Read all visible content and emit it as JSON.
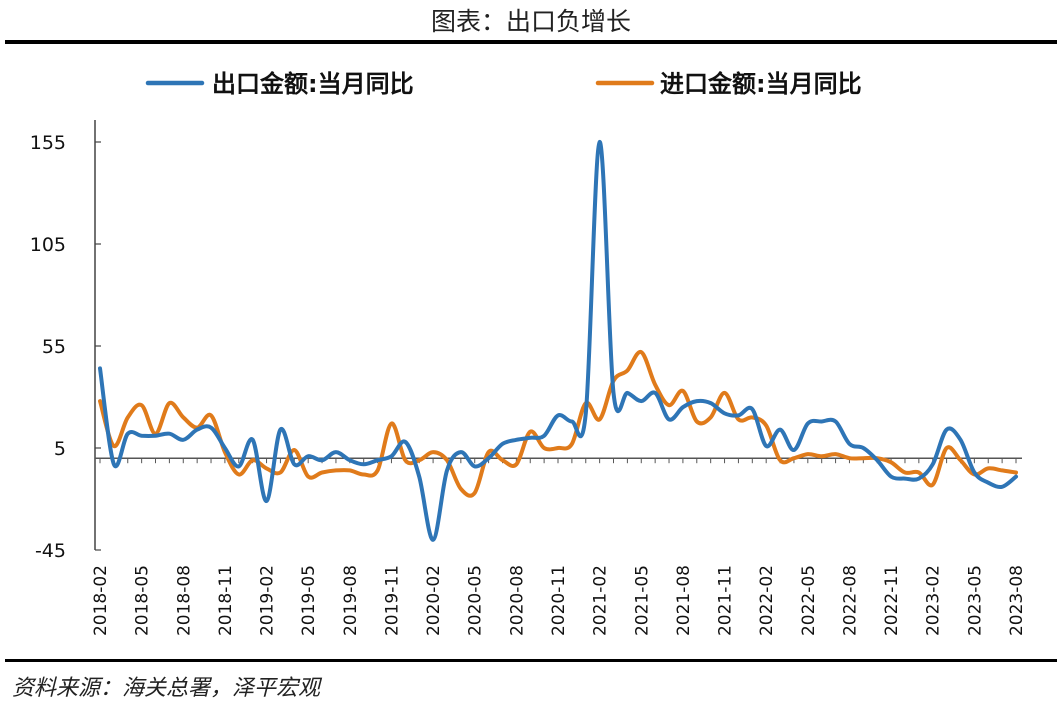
{
  "header": {
    "title": "图表：出口负增长"
  },
  "footer": {
    "source": "资料来源：海关总署，泽平宏观"
  },
  "chart_data": {
    "type": "line",
    "title": "图表：出口负增长",
    "xlabel": "",
    "ylabel": "",
    "ylim": [
      -45,
      155
    ],
    "yticks": [
      -45,
      5,
      55,
      105,
      155
    ],
    "grid": false,
    "legend_position": "top",
    "x_tick_labels": [
      "2018-02",
      "2018-05",
      "2018-08",
      "2018-11",
      "2019-02",
      "2019-05",
      "2019-08",
      "2019-11",
      "2020-02",
      "2020-05",
      "2020-08",
      "2020-11",
      "2021-02",
      "2021-05",
      "2021-08",
      "2021-11",
      "2022-02",
      "2022-05",
      "2022-08",
      "2022-11",
      "2023-02",
      "2023-05",
      "2023-08"
    ],
    "x": [
      "2018-02",
      "2018-03",
      "2018-04",
      "2018-05",
      "2018-06",
      "2018-07",
      "2018-08",
      "2018-09",
      "2018-10",
      "2018-11",
      "2018-12",
      "2019-01",
      "2019-02",
      "2019-03",
      "2019-04",
      "2019-05",
      "2019-06",
      "2019-07",
      "2019-08",
      "2019-09",
      "2019-10",
      "2019-11",
      "2019-12",
      "2020-01",
      "2020-02",
      "2020-03",
      "2020-04",
      "2020-05",
      "2020-06",
      "2020-07",
      "2020-08",
      "2020-09",
      "2020-10",
      "2020-11",
      "2020-12",
      "2021-01",
      "2021-02",
      "2021-03",
      "2021-04",
      "2021-05",
      "2021-06",
      "2021-07",
      "2021-08",
      "2021-09",
      "2021-10",
      "2021-11",
      "2021-12",
      "2022-01",
      "2022-02",
      "2022-03",
      "2022-04",
      "2022-05",
      "2022-06",
      "2022-07",
      "2022-08",
      "2022-09",
      "2022-10",
      "2022-11",
      "2022-12",
      "2023-01",
      "2023-02",
      "2023-03",
      "2023-04",
      "2023-05",
      "2023-06",
      "2023-07",
      "2023-08"
    ],
    "series": [
      {
        "name": "出口金额:当月同比",
        "color": "#2E75B6",
        "values": [
          44,
          -3,
          12,
          11,
          11,
          12,
          9,
          14,
          15,
          5,
          -4,
          9,
          -21,
          14,
          -3,
          1,
          -1,
          3,
          -1,
          -3,
          -1,
          1,
          8,
          -9,
          -40,
          -6,
          3,
          -4,
          0,
          7,
          9,
          10,
          11,
          21,
          18,
          22,
          155,
          32,
          32,
          28,
          32,
          19,
          25,
          28,
          27,
          22,
          21,
          24,
          6,
          14,
          4,
          17,
          18,
          18,
          7,
          5,
          -1,
          -9,
          -10,
          -10,
          -3,
          14,
          9,
          -7,
          -12,
          -14,
          -9
        ]
      },
      {
        "name": "进口金额:当月同比",
        "color": "#E07B1B",
        "values": [
          28,
          6,
          20,
          26,
          12,
          27,
          20,
          15,
          21,
          3,
          -8,
          -1,
          -5,
          -7,
          4,
          -9,
          -7,
          -6,
          -6,
          -8,
          -6,
          17,
          -1,
          -1,
          3,
          -1,
          -15,
          -17,
          3,
          -1,
          -3,
          13,
          5,
          5,
          7,
          27,
          19,
          38,
          43,
          52,
          36,
          26,
          33,
          18,
          20,
          32,
          19,
          20,
          16,
          -1,
          0,
          2,
          1,
          2,
          0,
          0,
          0,
          -2,
          -7,
          -7,
          -13,
          5,
          -1,
          -8,
          -5,
          -6,
          -7
        ]
      }
    ]
  }
}
